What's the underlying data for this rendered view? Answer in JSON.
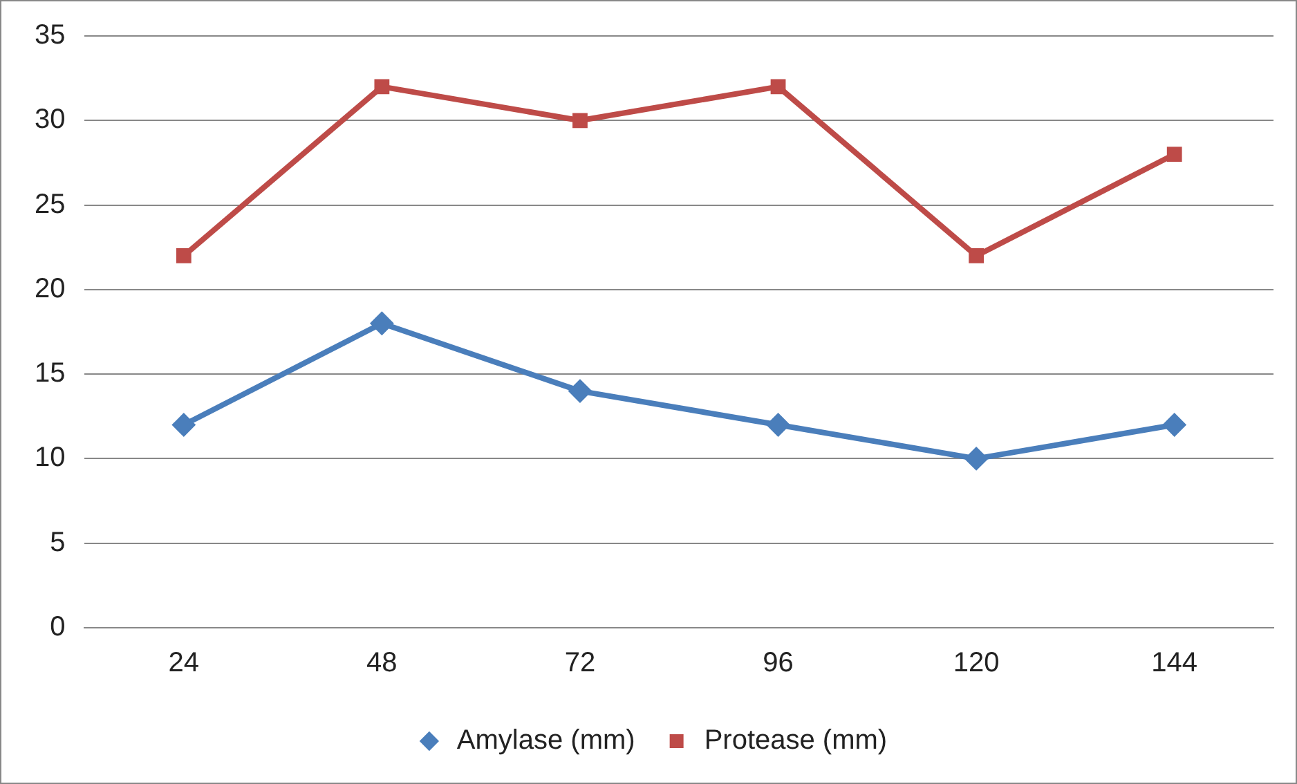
{
  "chart_data": {
    "type": "line",
    "categories": [
      "24",
      "48",
      "72",
      "96",
      "120",
      "144"
    ],
    "series": [
      {
        "name": "Amylase (mm)",
        "color": "#4a7ebb",
        "marker": "diamond",
        "values": [
          12,
          18,
          14,
          12,
          10,
          12
        ]
      },
      {
        "name": "Protease (mm)",
        "color": "#be4b48",
        "marker": "square",
        "values": [
          22,
          32,
          30,
          32,
          22,
          28
        ]
      }
    ],
    "ylim": [
      0,
      35
    ],
    "yticks": [
      0,
      5,
      10,
      15,
      20,
      25,
      30,
      35
    ],
    "grid": "y",
    "legend": "bottom",
    "line_style": "solid"
  }
}
